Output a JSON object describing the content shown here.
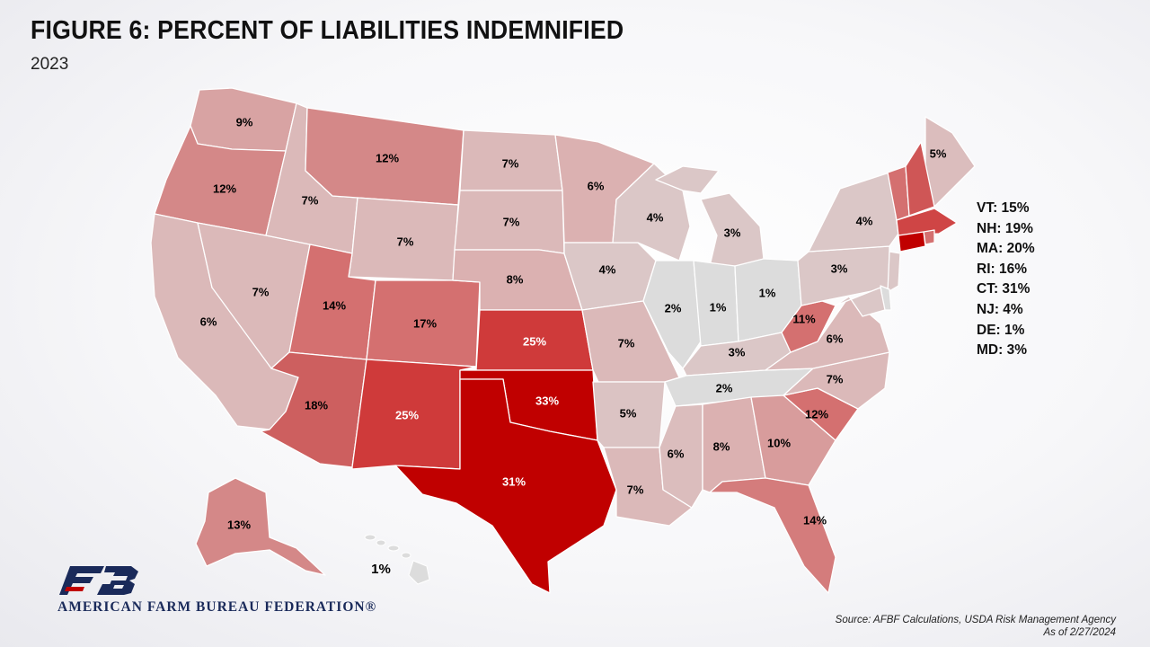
{
  "title": "FIGURE 6: PERCENT OF LIABILITIES INDEMNIFIED",
  "subtitle": "2023",
  "colors": {
    "very_light": "#dcdcdc",
    "light": "#dbb9b9",
    "medium": "#d48c8c",
    "dark": "#cf3a3a",
    "darkest": "#c00000",
    "white_text": "#ffffff"
  },
  "states": [
    {
      "id": "WA",
      "label": "9%"
    },
    {
      "id": "OR",
      "label": "12%"
    },
    {
      "id": "CA",
      "label": "6%"
    },
    {
      "id": "NV",
      "label": "7%"
    },
    {
      "id": "ID",
      "label": "7%"
    },
    {
      "id": "MT",
      "label": "12%"
    },
    {
      "id": "WY",
      "label": "7%"
    },
    {
      "id": "UT",
      "label": "14%"
    },
    {
      "id": "CO",
      "label": "17%"
    },
    {
      "id": "AZ",
      "label": "18%"
    },
    {
      "id": "NM",
      "label": "25%"
    },
    {
      "id": "ND",
      "label": "7%"
    },
    {
      "id": "SD",
      "label": "7%"
    },
    {
      "id": "NE",
      "label": "8%"
    },
    {
      "id": "KS",
      "label": "25%"
    },
    {
      "id": "OK",
      "label": "33%"
    },
    {
      "id": "TX",
      "label": "31%"
    },
    {
      "id": "MN",
      "label": "6%"
    },
    {
      "id": "IA",
      "label": "4%"
    },
    {
      "id": "MO",
      "label": "7%"
    },
    {
      "id": "AR",
      "label": "5%"
    },
    {
      "id": "LA",
      "label": "7%"
    },
    {
      "id": "WI",
      "label": "4%"
    },
    {
      "id": "MI",
      "label": "3%"
    },
    {
      "id": "IL",
      "label": "2%"
    },
    {
      "id": "IN",
      "label": "1%"
    },
    {
      "id": "OH",
      "label": "1%"
    },
    {
      "id": "KY",
      "label": "3%"
    },
    {
      "id": "TN",
      "label": "2%"
    },
    {
      "id": "MS",
      "label": "6%"
    },
    {
      "id": "AL",
      "label": "8%"
    },
    {
      "id": "GA",
      "label": "10%"
    },
    {
      "id": "FL",
      "label": "14%"
    },
    {
      "id": "SC",
      "label": "12%"
    },
    {
      "id": "NC",
      "label": "7%"
    },
    {
      "id": "VA",
      "label": "6%"
    },
    {
      "id": "WV",
      "label": "11%"
    },
    {
      "id": "PA",
      "label": "3%"
    },
    {
      "id": "NY",
      "label": "4%"
    },
    {
      "id": "ME",
      "label": "5%"
    },
    {
      "id": "AK",
      "label": "13%"
    },
    {
      "id": "HI",
      "label": "1%"
    }
  ],
  "northeast_list": [
    "VT: 15%",
    "NH: 19%",
    "MA: 20%",
    "RI: 16%",
    "CT: 31%",
    "NJ: 4%",
    "DE: 1%",
    "MD: 3%"
  ],
  "org_name": "AMERICAN FARM BUREAU FEDERATION®",
  "source_line1": "Source: AFBF Calculations, USDA Risk Management Agency",
  "source_line2": "As of 2/27/2024"
}
